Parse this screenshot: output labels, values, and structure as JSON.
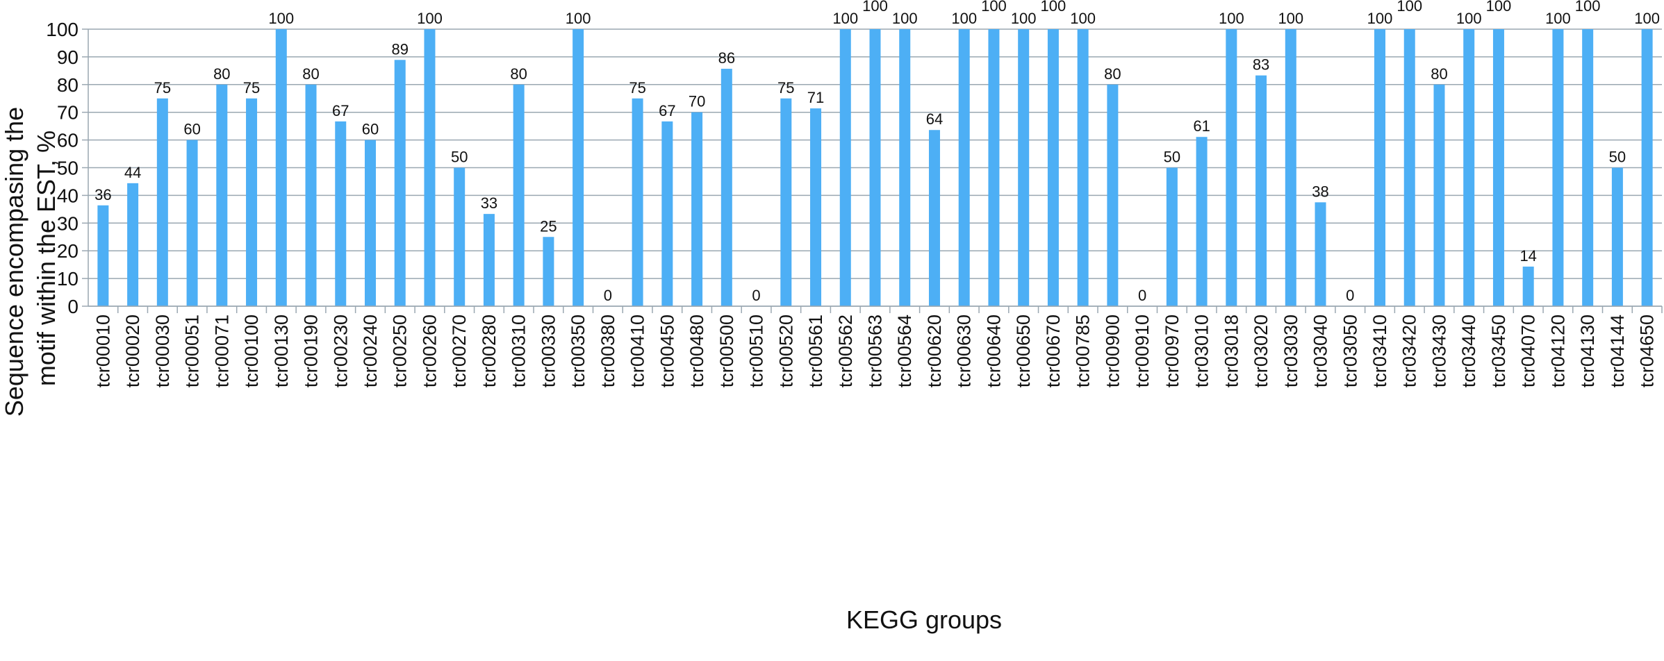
{
  "chart_data": {
    "type": "bar",
    "title": "",
    "xlabel": "KEGG groups",
    "ylabel_lines": [
      "Sequence encompasing the",
      "motif within the EST, %"
    ],
    "ylim": [
      0,
      100
    ],
    "yticks": [
      0,
      10,
      20,
      30,
      40,
      50,
      60,
      70,
      80,
      90,
      100
    ],
    "grid": true,
    "legend": "none",
    "bar_color": "#4DAFF5",
    "grid_color": "#9aa7b1",
    "categories": [
      "tcr00010",
      "tcr00020",
      "tcr00030",
      "tcr00051",
      "tcr00071",
      "tcr00100",
      "tcr00130",
      "tcr00190",
      "tcr00230",
      "tcr00240",
      "tcr00250",
      "tcr00260",
      "tcr00270",
      "tcr00280",
      "tcr00310",
      "tcr00330",
      "tcr00350",
      "tcr00380",
      "tcr00410",
      "tcr00450",
      "tcr00480",
      "tcr00500",
      "tcr00510",
      "tcr00520",
      "tcr00561",
      "tcr00562",
      "tcr00563",
      "tcr00564",
      "tcr00620",
      "tcr00630",
      "tcr00640",
      "tcr00650",
      "tcr00670",
      "tcr00785",
      "tcr00900",
      "tcr00910",
      "tcr00970",
      "tcr03010",
      "tcr03018",
      "tcr03020",
      "tcr03030",
      "tcr03040",
      "tcr03050",
      "tcr03410",
      "tcr03420",
      "tcr03430",
      "tcr03440",
      "tcr03450",
      "tcr04070",
      "tcr04120",
      "tcr04130",
      "tcr04144",
      "tcr04650"
    ],
    "values": [
      36.4,
      44.4,
      75,
      60,
      80,
      75,
      100,
      80,
      66.7,
      60,
      88.9,
      100,
      50,
      33.3,
      80,
      25,
      100,
      0,
      75,
      66.7,
      70,
      85.7,
      0,
      75,
      71.4,
      100,
      100,
      100,
      63.6,
      100,
      100,
      100,
      100,
      100,
      80,
      0,
      50,
      61.1,
      100,
      83.3,
      100,
      37.5,
      0,
      100,
      100,
      80,
      100,
      100,
      14.3,
      100,
      100,
      50,
      100
    ],
    "data_labels": [
      "36",
      "44",
      "75",
      "60",
      "80",
      "75",
      "100",
      "80",
      "67",
      "60",
      "89",
      "100",
      "50",
      "33",
      "80",
      "25",
      "100",
      "0",
      "75",
      "67",
      "70",
      "86",
      "0",
      "75",
      "71",
      "100",
      "100",
      "100",
      "64",
      "100",
      "100",
      "100",
      "100",
      "100",
      "80",
      "0",
      "50",
      "61",
      "100",
      "83",
      "100",
      "38",
      "0",
      "100",
      "100",
      "80",
      "100",
      "100",
      "14",
      "100",
      "100",
      "50",
      "100"
    ]
  }
}
